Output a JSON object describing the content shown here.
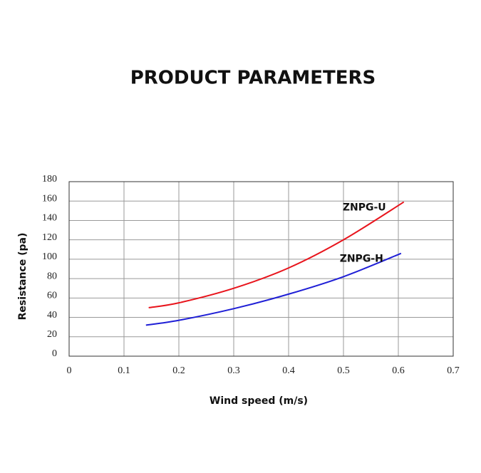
{
  "chart_data": {
    "type": "line",
    "title": "PRODUCT PARAMETERS",
    "x_label": "Wind speed  (m/s)",
    "y_label": "Resistance (pa)",
    "xlim": [
      0,
      0.7
    ],
    "xticks": [
      0,
      0.1,
      0.2,
      0.3,
      0.4,
      0.5,
      0.6,
      0.7
    ],
    "ylim": [
      0,
      180
    ],
    "yticks": [
      0,
      20,
      40,
      60,
      80,
      100,
      120,
      140,
      160,
      180
    ],
    "grid": true,
    "series": [
      {
        "name": "ZNPG-U",
        "color": "#e8141c",
        "x": [
          0.145,
          0.2,
          0.3,
          0.4,
          0.5,
          0.61
        ],
        "values": [
          50,
          55,
          70,
          91,
          120,
          159
        ]
      },
      {
        "name": "ZNPG-H",
        "color": "#1f1fd6",
        "x": [
          0.14,
          0.2,
          0.3,
          0.4,
          0.5,
          0.605
        ],
        "values": [
          32,
          37,
          49,
          64,
          82,
          106
        ]
      }
    ]
  }
}
